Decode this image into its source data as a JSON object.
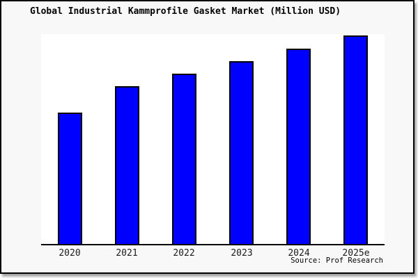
{
  "title": "Global Industrial Kammprofile Gasket Market (Million USD)",
  "source": "Source: Prof Research",
  "colors": {
    "bar_fill": "#0000ff",
    "bar_border": "#000000",
    "box_background": "#f8f8f8",
    "plot_background": "#ffffff",
    "axis": "#000000",
    "frame_border": "#000000"
  },
  "chart_data": {
    "type": "bar",
    "title": "Global Industrial Kammprofile Gasket Market (Million USD)",
    "categories": [
      "2020",
      "2021",
      "2022",
      "2023",
      "2024",
      "2025e"
    ],
    "values": [
      63.0,
      75.7,
      81.7,
      87.7,
      93.7,
      100.0
    ],
    "units": "relative height (no y-axis scale shown in chart)",
    "xlabel": "",
    "ylabel": "",
    "ylim": [
      0,
      100.7
    ],
    "grid": false,
    "legend": false,
    "y_axis_visible": false,
    "bar_color": "#0000ff",
    "annotations": [
      "Source: Prof Research"
    ]
  }
}
